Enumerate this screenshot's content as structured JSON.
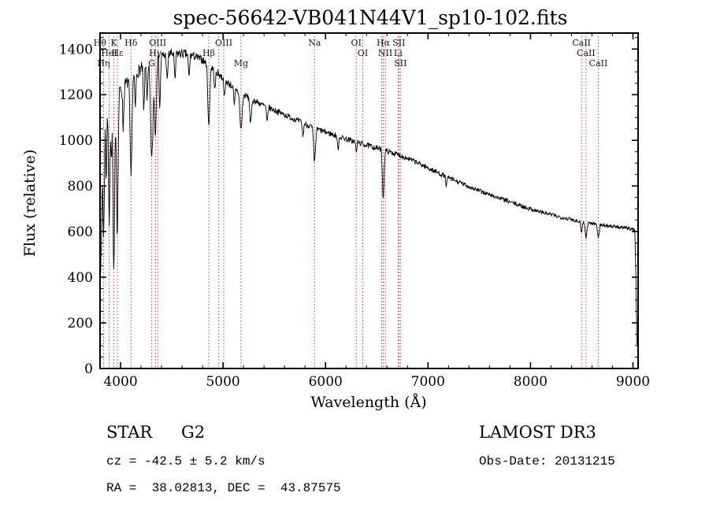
{
  "title": "spec-56642-VB041N44V1_sp10-102.fits",
  "colors": {
    "background": "#ffffff",
    "spectrum": "#000000",
    "line_marker": "#c32222",
    "axis": "#000000",
    "text": "#000000"
  },
  "annotations": {
    "class_label": "STAR",
    "subclass_label": "G2",
    "cz_line": "cz = -42.5 ± 5.2 km/s",
    "radec_line": "RA =  38.02813, DEC =  43.87575",
    "survey": "LAMOST DR3",
    "obsdate_line": "Obs-Date: 20131215"
  },
  "chart_data": {
    "type": "line",
    "title": "spec-56642-VB041N44V1_sp10-102.fits",
    "xlabel": "Wavelength (Å)",
    "ylabel": "Flux (relative)",
    "xlim": [
      3800,
      9050
    ],
    "ylim": [
      0,
      1470
    ],
    "x_ticks": [
      4000,
      5000,
      6000,
      7000,
      8000,
      9000
    ],
    "y_ticks": [
      0,
      200,
      400,
      600,
      800,
      1000,
      1200,
      1400
    ],
    "x_minor_step": 200,
    "y_minor_step": 50,
    "grid": false,
    "legend": "none",
    "sample_step": 4,
    "continuum": [
      [
        3802,
        560
      ],
      [
        3810,
        900
      ],
      [
        3830,
        1080
      ],
      [
        3860,
        1140
      ],
      [
        3900,
        1170
      ],
      [
        3950,
        1195
      ],
      [
        4000,
        1225
      ],
      [
        4060,
        1250
      ],
      [
        4120,
        1280
      ],
      [
        4200,
        1315
      ],
      [
        4300,
        1345
      ],
      [
        4400,
        1368
      ],
      [
        4500,
        1380
      ],
      [
        4600,
        1380
      ],
      [
        4700,
        1372
      ],
      [
        4800,
        1352
      ],
      [
        4900,
        1315
      ],
      [
        5000,
        1272
      ],
      [
        5100,
        1232
      ],
      [
        5200,
        1200
      ],
      [
        5300,
        1175
      ],
      [
        5400,
        1152
      ],
      [
        5500,
        1132
      ],
      [
        5600,
        1112
      ],
      [
        5700,
        1092
      ],
      [
        5800,
        1072
      ],
      [
        5900,
        1052
      ],
      [
        6000,
        1036
      ],
      [
        6100,
        1021
      ],
      [
        6200,
        1006
      ],
      [
        6300,
        992
      ],
      [
        6400,
        979
      ],
      [
        6500,
        966
      ],
      [
        6600,
        953
      ],
      [
        6700,
        938
      ],
      [
        6800,
        921
      ],
      [
        6900,
        901
      ],
      [
        7000,
        879
      ],
      [
        7100,
        857
      ],
      [
        7200,
        836
      ],
      [
        7300,
        816
      ],
      [
        7400,
        797
      ],
      [
        7500,
        779
      ],
      [
        7600,
        762
      ],
      [
        7700,
        746
      ],
      [
        7800,
        730
      ],
      [
        7900,
        714
      ],
      [
        8000,
        699
      ],
      [
        8100,
        686
      ],
      [
        8200,
        674
      ],
      [
        8300,
        663
      ],
      [
        8400,
        653
      ],
      [
        8500,
        644
      ],
      [
        8600,
        636
      ],
      [
        8700,
        629
      ],
      [
        8800,
        623
      ],
      [
        8900,
        617
      ],
      [
        9000,
        612
      ],
      [
        9018,
        606
      ],
      [
        9028,
        420
      ],
      [
        9038,
        110
      ]
    ],
    "absorption_features": [
      [
        3812,
        450,
        6
      ],
      [
        3835,
        520,
        7
      ],
      [
        3860,
        300,
        5
      ],
      [
        3889,
        520,
        7
      ],
      [
        3910,
        250,
        5
      ],
      [
        3934,
        780,
        8
      ],
      [
        3968,
        600,
        8
      ],
      [
        4026,
        180,
        6
      ],
      [
        4102,
        430,
        9
      ],
      [
        4144,
        150,
        6
      ],
      [
        4227,
        200,
        6
      ],
      [
        4260,
        150,
        6
      ],
      [
        4305,
        430,
        12
      ],
      [
        4340,
        330,
        8
      ],
      [
        4383,
        220,
        6
      ],
      [
        4455,
        120,
        6
      ],
      [
        4531,
        120,
        6
      ],
      [
        4668,
        100,
        6
      ],
      [
        4861,
        270,
        9
      ],
      [
        4920,
        90,
        6
      ],
      [
        5015,
        80,
        6
      ],
      [
        5110,
        80,
        6
      ],
      [
        5175,
        160,
        11
      ],
      [
        5270,
        110,
        8
      ],
      [
        5430,
        70,
        6
      ],
      [
        5780,
        60,
        6
      ],
      [
        5893,
        150,
        9
      ],
      [
        6122,
        60,
        6
      ],
      [
        6300,
        50,
        5
      ],
      [
        6563,
        210,
        8
      ],
      [
        7180,
        40,
        6
      ],
      [
        8498,
        45,
        7
      ],
      [
        8542,
        70,
        8
      ],
      [
        8662,
        55,
        8
      ]
    ],
    "noise": {
      "seed": 7,
      "segments": [
        [
          3802,
          40
        ],
        [
          4000,
          30
        ],
        [
          4400,
          24
        ],
        [
          4800,
          17
        ],
        [
          5500,
          13
        ],
        [
          6500,
          12
        ],
        [
          7500,
          10
        ],
        [
          9040,
          8
        ]
      ]
    },
    "spectral_lines": [
      {
        "label": "Hθ",
        "wavelength": 3799,
        "row": 1
      },
      {
        "label": "Hη",
        "wavelength": 3835,
        "row": 3
      },
      {
        "label": "HeI",
        "wavelength": 3889,
        "row": 2
      },
      {
        "label": "K",
        "wavelength": 3934,
        "row": 1
      },
      {
        "label": "Hε",
        "wavelength": 3970,
        "row": 2
      },
      {
        "label": "Hδ",
        "wavelength": 4102,
        "row": 1
      },
      {
        "label": "G",
        "wavelength": 4304,
        "row": 3
      },
      {
        "label": "Hγ",
        "wavelength": 4340,
        "row": 2
      },
      {
        "label": "OIII",
        "wavelength": 4363,
        "row": 1
      },
      {
        "label": "Hβ",
        "wavelength": 4861,
        "row": 2
      },
      {
        "label": "",
        "wavelength": 4959,
        "row": 0
      },
      {
        "label": "OIII",
        "wavelength": 5007,
        "row": 1
      },
      {
        "label": "Mg",
        "wavelength": 5175,
        "row": 3
      },
      {
        "label": "Na",
        "wavelength": 5893,
        "row": 1
      },
      {
        "label": "OI",
        "wavelength": 6300,
        "row": 1
      },
      {
        "label": "OI",
        "wavelength": 6364,
        "row": 2
      },
      {
        "label": "",
        "wavelength": 6548,
        "row": 0
      },
      {
        "label": "Hα",
        "wavelength": 6563,
        "row": 1
      },
      {
        "label": "NII",
        "wavelength": 6583,
        "row": 2
      },
      {
        "label": "Li",
        "wavelength": 6708,
        "row": 2
      },
      {
        "label": "SII",
        "wavelength": 6716,
        "row": 1
      },
      {
        "label": "SII",
        "wavelength": 6731,
        "row": 3
      },
      {
        "label": "CaII",
        "wavelength": 8498,
        "row": 1
      },
      {
        "label": "CaII",
        "wavelength": 8542,
        "row": 2
      },
      {
        "label": "CaII",
        "wavelength": 8662,
        "row": 3
      }
    ]
  }
}
